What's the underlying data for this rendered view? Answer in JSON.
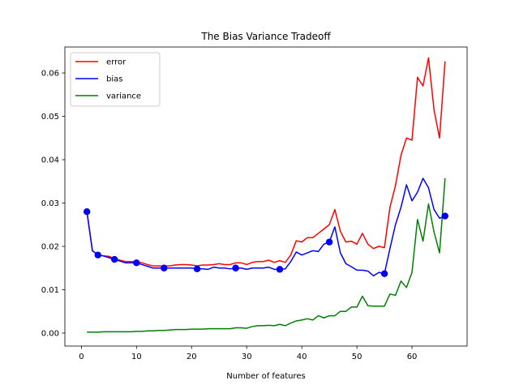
{
  "chart_data": {
    "type": "line",
    "title": "The Bias Variance Tradeoff",
    "xlabel": "Number of features",
    "ylabel": "",
    "xlim": [
      -3,
      70
    ],
    "ylim": [
      -0.003,
      0.066
    ],
    "xticks": [
      0,
      10,
      20,
      30,
      40,
      50,
      60
    ],
    "xtick_labels": [
      "0",
      "10",
      "20",
      "30",
      "40",
      "50",
      "60"
    ],
    "yticks": [
      0.0,
      0.01,
      0.02,
      0.03,
      0.04,
      0.05,
      0.06
    ],
    "ytick_labels": [
      "0.00",
      "0.01",
      "0.02",
      "0.03",
      "0.04",
      "0.05",
      "0.06"
    ],
    "grid": false,
    "legend_position": "top-left",
    "x": [
      1,
      2,
      3,
      4,
      5,
      6,
      7,
      8,
      9,
      10,
      11,
      12,
      13,
      14,
      15,
      16,
      17,
      18,
      19,
      20,
      21,
      22,
      23,
      24,
      25,
      26,
      27,
      28,
      29,
      30,
      31,
      32,
      33,
      34,
      35,
      36,
      37,
      38,
      39,
      40,
      41,
      42,
      43,
      44,
      45,
      46,
      47,
      48,
      49,
      50,
      51,
      52,
      53,
      54,
      55,
      56,
      57,
      58,
      59,
      60,
      61,
      62,
      63,
      64,
      65,
      66
    ],
    "series": [
      {
        "name": "error",
        "color": "#ff0000",
        "values": [
          0.028,
          0.019,
          0.018,
          0.0178,
          0.0177,
          0.0172,
          0.0168,
          0.0165,
          0.0165,
          0.0165,
          0.0162,
          0.0158,
          0.0155,
          0.0155,
          0.0155,
          0.0155,
          0.0157,
          0.0158,
          0.0158,
          0.0157,
          0.0155,
          0.0157,
          0.0157,
          0.0158,
          0.016,
          0.0158,
          0.0158,
          0.0162,
          0.0162,
          0.0158,
          0.0163,
          0.0165,
          0.0165,
          0.0168,
          0.0163,
          0.0167,
          0.0163,
          0.018,
          0.0213,
          0.021,
          0.022,
          0.022,
          0.023,
          0.024,
          0.025,
          0.0285,
          0.0235,
          0.021,
          0.0212,
          0.0205,
          0.023,
          0.0205,
          0.0195,
          0.02,
          0.0197,
          0.029,
          0.034,
          0.041,
          0.045,
          0.0445,
          0.059,
          0.057,
          0.0635,
          0.0515,
          0.045,
          0.0627
        ]
      },
      {
        "name": "bias",
        "color": "#0000ff",
        "values": [
          0.028,
          0.019,
          0.018,
          0.0178,
          0.0174,
          0.017,
          0.0166,
          0.0162,
          0.0162,
          0.0162,
          0.0158,
          0.0154,
          0.015,
          0.015,
          0.015,
          0.015,
          0.015,
          0.015,
          0.015,
          0.015,
          0.0148,
          0.0148,
          0.0147,
          0.0152,
          0.015,
          0.015,
          0.0148,
          0.015,
          0.015,
          0.0147,
          0.015,
          0.015,
          0.015,
          0.0152,
          0.0147,
          0.0147,
          0.0148,
          0.0165,
          0.0187,
          0.018,
          0.0185,
          0.019,
          0.0188,
          0.0205,
          0.021,
          0.0245,
          0.0185,
          0.016,
          0.0153,
          0.0145,
          0.0145,
          0.0143,
          0.0132,
          0.014,
          0.0137,
          0.0195,
          0.025,
          0.029,
          0.0342,
          0.0305,
          0.0325,
          0.0357,
          0.0335,
          0.0285,
          0.0265,
          0.027
        ]
      },
      {
        "name": "variance",
        "color": "#008000",
        "values": [
          0.0002,
          0.0002,
          0.0002,
          0.0003,
          0.0003,
          0.0003,
          0.0003,
          0.0003,
          0.0003,
          0.0004,
          0.0004,
          0.0005,
          0.0005,
          0.0006,
          0.0006,
          0.0007,
          0.0008,
          0.0008,
          0.0008,
          0.0009,
          0.0009,
          0.0009,
          0.001,
          0.001,
          0.001,
          0.001,
          0.001,
          0.0012,
          0.0012,
          0.0011,
          0.0015,
          0.0017,
          0.0017,
          0.0018,
          0.0017,
          0.002,
          0.0017,
          0.0023,
          0.0028,
          0.003,
          0.0033,
          0.003,
          0.004,
          0.0035,
          0.004,
          0.004,
          0.005,
          0.005,
          0.006,
          0.006,
          0.0085,
          0.0063,
          0.0062,
          0.0062,
          0.0062,
          0.009,
          0.0087,
          0.012,
          0.0105,
          0.014,
          0.0262,
          0.0212,
          0.0298,
          0.0233,
          0.0185,
          0.0357
        ]
      }
    ],
    "markers": {
      "series": "bias",
      "color": "#0000ff",
      "points": [
        {
          "x": 1,
          "y": 0.028
        },
        {
          "x": 3,
          "y": 0.018
        },
        {
          "x": 6,
          "y": 0.017
        },
        {
          "x": 10,
          "y": 0.0162
        },
        {
          "x": 15,
          "y": 0.015
        },
        {
          "x": 21,
          "y": 0.0148
        },
        {
          "x": 28,
          "y": 0.015
        },
        {
          "x": 36,
          "y": 0.0147
        },
        {
          "x": 45,
          "y": 0.021
        },
        {
          "x": 55,
          "y": 0.0137
        },
        {
          "x": 66,
          "y": 0.027
        }
      ]
    }
  }
}
